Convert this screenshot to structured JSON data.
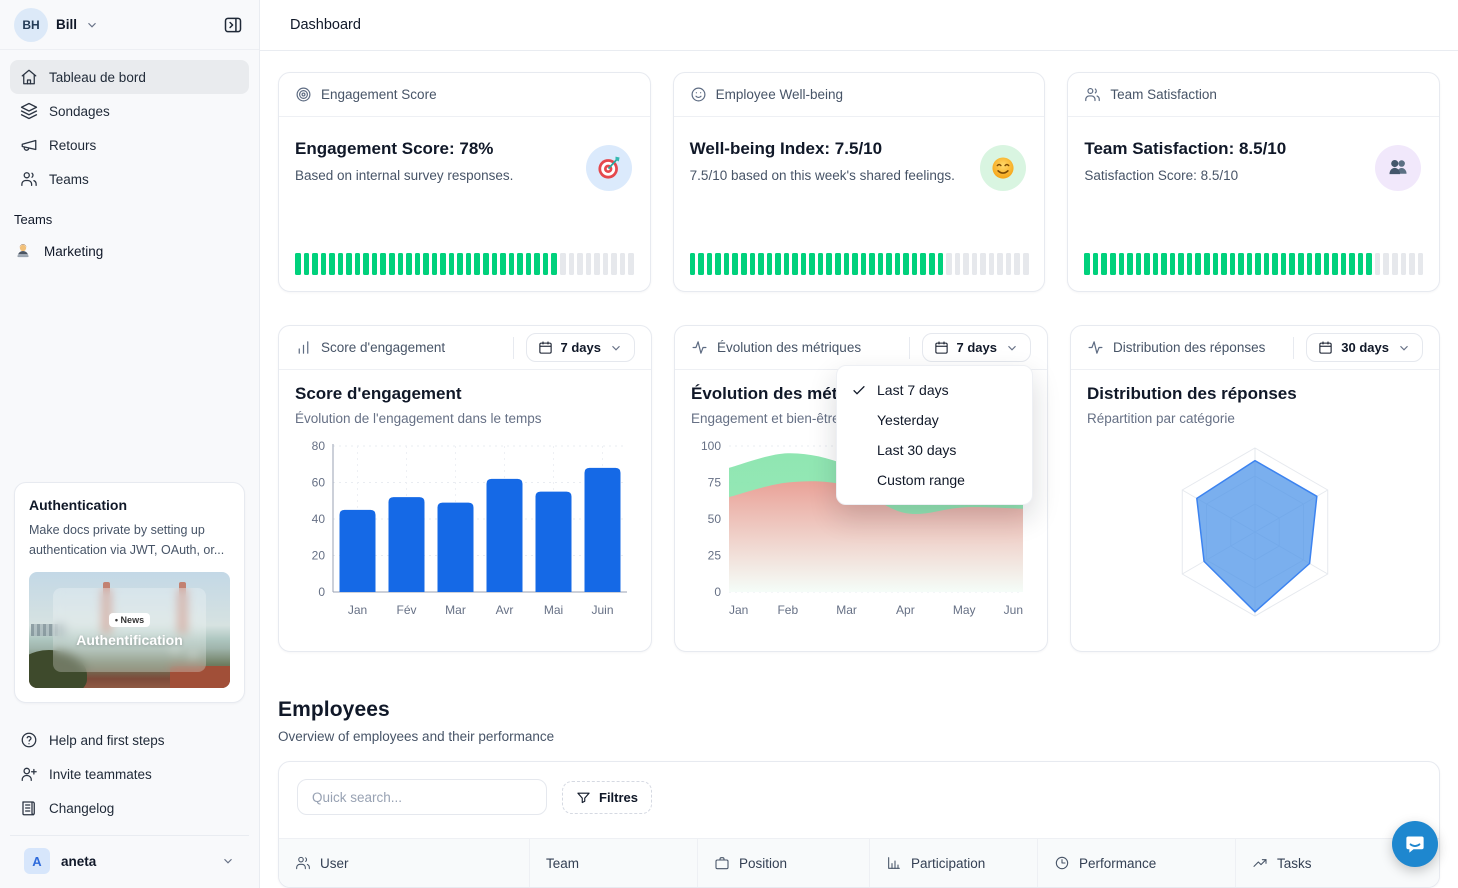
{
  "app": {
    "topbar_title": "Dashboard"
  },
  "sidebar": {
    "user": {
      "initials": "BH",
      "name": "Bill"
    },
    "nav": [
      {
        "label": "Tableau de bord",
        "icon": "home-icon",
        "active": true
      },
      {
        "label": "Sondages",
        "icon": "layers-icon",
        "active": false
      },
      {
        "label": "Retours",
        "icon": "megaphone-icon",
        "active": false
      },
      {
        "label": "Teams",
        "icon": "users-icon",
        "active": false
      }
    ],
    "teams_section": {
      "label": "Teams",
      "items": [
        {
          "label": "Marketing",
          "icon": "technologist-emoji-icon"
        }
      ]
    },
    "promo_card": {
      "title": "Authentication",
      "description": "Make docs private by setting up authentication via JWT, OAuth, or...",
      "image_badge": "• News",
      "image_caption": "Authentification"
    },
    "footer_nav": [
      {
        "label": "Help and first steps",
        "icon": "help-circle-icon"
      },
      {
        "label": "Invite teammates",
        "icon": "user-plus-icon"
      },
      {
        "label": "Changelog",
        "icon": "newspaper-icon"
      }
    ],
    "workspace": {
      "initial": "A",
      "name": "aneta"
    }
  },
  "stat_cards": [
    {
      "header": "Engagement Score",
      "header_icon": "target-icon",
      "title": "Engagement Score: 78%",
      "subtitle": "Based on internal survey responses.",
      "badge_icon": "dart-target-emoji-icon",
      "badge_bg": "#dbeafc",
      "progress_percent": 78
    },
    {
      "header": "Employee Well-being",
      "header_icon": "smiley-icon",
      "title": "Well-being Index: 7.5/10",
      "subtitle": "7.5/10 based on this week's shared feelings.",
      "badge_icon": "smiling-face-emoji-icon",
      "badge_bg": "#d9f5e1",
      "progress_percent": 75
    },
    {
      "header": "Team Satisfaction",
      "header_icon": "users-icon",
      "title": "Team Satisfaction: 8.5/10",
      "subtitle": "Satisfaction Score: 8.5/10",
      "badge_icon": "busts-emoji-icon",
      "badge_bg": "#f1e8fb",
      "progress_percent": 85
    }
  ],
  "chart_cards": [
    {
      "header": "Score d'engagement",
      "header_icon": "bar-chart-icon",
      "range_label": "7 days"
    },
    {
      "header": "Évolution des métriques",
      "header_icon": "activity-icon",
      "range_label": "7 days"
    },
    {
      "header": "Distribution des réponses",
      "header_icon": "activity-icon",
      "range_label": "30 days"
    }
  ],
  "range_menu": {
    "items": [
      {
        "label": "Last 7 days",
        "checked": true
      },
      {
        "label": "Yesterday",
        "checked": false
      },
      {
        "label": "Last 30 days",
        "checked": false
      },
      {
        "label": "Custom range",
        "checked": false
      }
    ]
  },
  "employees": {
    "title": "Employees",
    "subtitle": "Overview of employees and their performance",
    "search_placeholder": "Quick search...",
    "filter_label": "Filtres",
    "columns": [
      {
        "label": "User",
        "icon": "users-icon"
      },
      {
        "label": "Team",
        "icon": null
      },
      {
        "label": "Position",
        "icon": "briefcase-icon"
      },
      {
        "label": "Participation",
        "icon": "bar-chart-icon"
      },
      {
        "label": "Performance",
        "icon": "clock-icon"
      },
      {
        "label": "Tasks",
        "icon": "trending-up-icon"
      }
    ]
  },
  "chart_data": [
    {
      "type": "bar",
      "title": "Score d'engagement",
      "subtitle": "Évolution de l'engagement dans le temps",
      "categories": [
        "Jan",
        "Fév",
        "Mar",
        "Avr",
        "Mai",
        "Juin"
      ],
      "values": [
        45,
        52,
        49,
        62,
        55,
        68
      ],
      "ylim": [
        0,
        80
      ],
      "yticks": [
        0,
        20,
        40,
        60,
        80
      ],
      "bar_color": "#1569e6",
      "grid": true
    },
    {
      "type": "area",
      "title": "Évolution des métriques",
      "subtitle": "Engagement et bien-être",
      "x": [
        "Jan",
        "Feb",
        "Mar",
        "Apr",
        "May",
        "Jun"
      ],
      "series": [
        {
          "name": "Engagement",
          "values": [
            85,
            95,
            87,
            64,
            68,
            66
          ],
          "color": "#8ae5ae"
        },
        {
          "name": "Bien-être",
          "values": [
            65,
            75,
            73,
            54,
            58,
            57
          ],
          "color": "#ee9e96"
        }
      ],
      "ylim": [
        0,
        100
      ],
      "yticks": [
        0,
        25,
        50,
        75,
        100
      ],
      "grid": true
    },
    {
      "type": "radar",
      "title": "Distribution des réponses",
      "subtitle": "Répartition par catégorie",
      "axes": [
        "",
        "",
        "",
        "",
        "",
        ""
      ],
      "values": [
        85,
        85,
        75,
        95,
        70,
        80
      ],
      "max": 100,
      "levels": 3,
      "fill_color": "rgba(77,148,232,0.75)",
      "stroke_color": "#3c83f0"
    }
  ],
  "colors": {
    "accent_blue": "#1569e6",
    "progress_green": "#00d17c",
    "chat_blue": "#1e87cf"
  }
}
